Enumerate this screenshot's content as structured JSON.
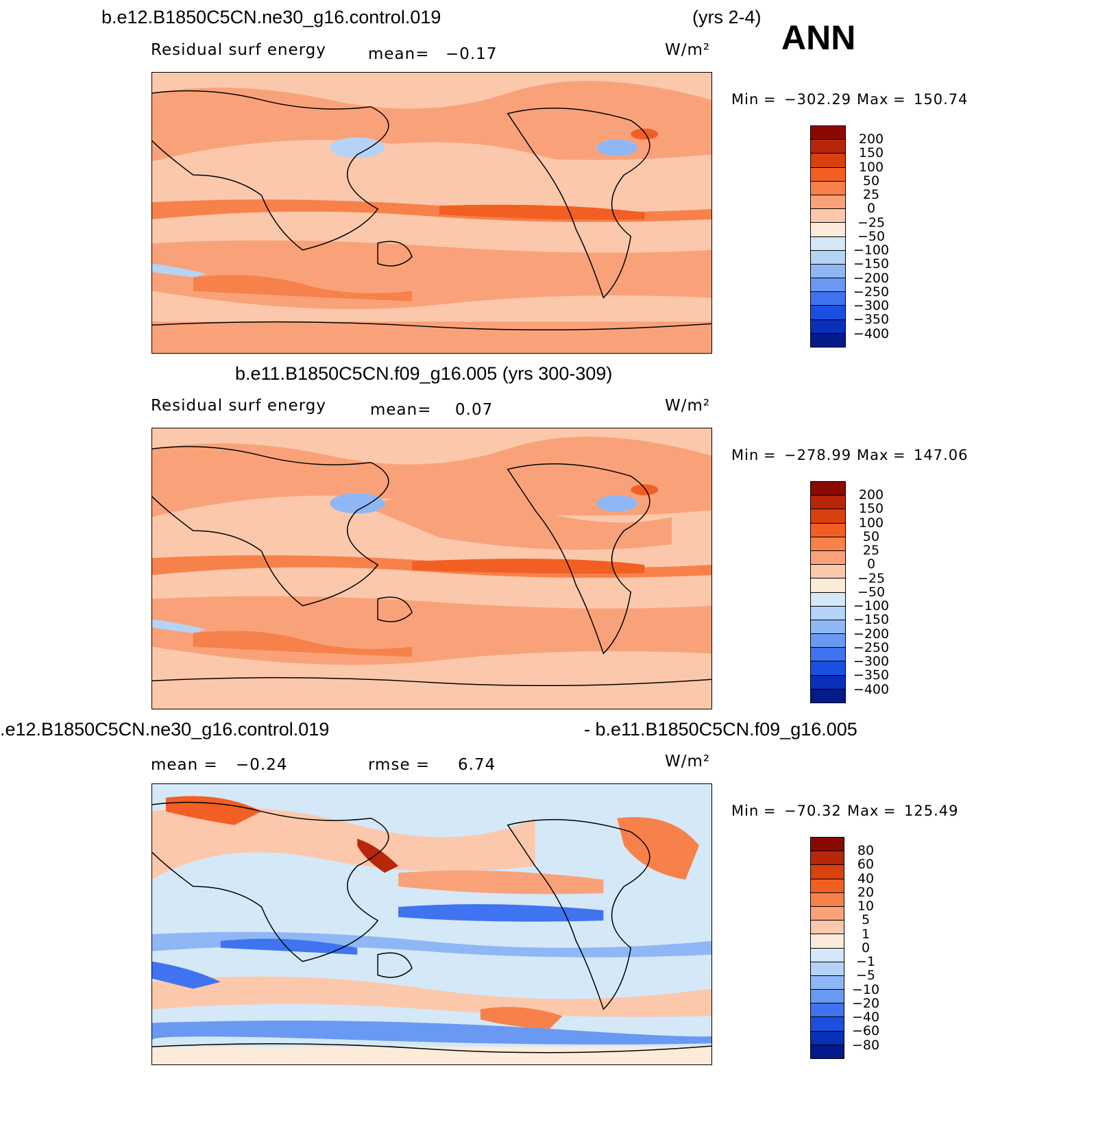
{
  "title_annual": "ANN",
  "panels": [
    {
      "header_left": "b.e12.B1850C5CN.ne30_g16.control.019",
      "header_right": "(yrs 2-4)",
      "variable": "Residual surf energy",
      "stat1_label": "mean=",
      "stat1_value": "−0.17",
      "units": "W/m²",
      "min_label": "Min",
      "min_value": "−302.29",
      "max_label": "Max",
      "max_value": "150.74",
      "levels": [
        "200",
        "150",
        "100",
        "50",
        "25",
        "0",
        "−25",
        "−50",
        "−100",
        "−150",
        "−200",
        "−250",
        "−300",
        "−350",
        "−400"
      ],
      "colors": [
        "#8a0a02",
        "#b8260a",
        "#d9410f",
        "#f25f23",
        "#f7814a",
        "#f9a27a",
        "#fbc8ac",
        "#fdebd9",
        "#d4e8f8",
        "#b5d3f6",
        "#8fb7f5",
        "#6a99f3",
        "#3f73ef",
        "#1b4fe0",
        "#0a2fb8",
        "#031a8a"
      ],
      "mean_value": -0.17,
      "range": [
        -302.29,
        150.74
      ]
    },
    {
      "header_left": "b.e11.B1850C5CN.f09_g16.005 (yrs 300-309)",
      "variable": "Residual surf energy",
      "stat1_label": "mean=",
      "stat1_value": "0.07",
      "units": "W/m²",
      "min_label": "Min",
      "min_value": "−278.99",
      "max_label": "Max",
      "max_value": "147.06",
      "levels": [
        "200",
        "150",
        "100",
        "50",
        "25",
        "0",
        "−25",
        "−50",
        "−100",
        "−150",
        "−200",
        "−250",
        "−300",
        "−350",
        "−400"
      ],
      "colors": [
        "#8a0a02",
        "#b8260a",
        "#d9410f",
        "#f25f23",
        "#f7814a",
        "#f9a27a",
        "#fbc8ac",
        "#fdebd9",
        "#d4e8f8",
        "#b5d3f6",
        "#8fb7f5",
        "#6a99f3",
        "#3f73ef",
        "#1b4fe0",
        "#0a2fb8",
        "#031a8a"
      ],
      "mean_value": 0.07,
      "range": [
        -278.99,
        147.06
      ]
    },
    {
      "header_left": ".e12.B1850C5CN.ne30_g16.control.019",
      "header_right": "- b.e11.B1850C5CN.f09_g16.005",
      "stat1_label": "mean =",
      "stat1_value": "−0.24",
      "stat2_label": "rmse =",
      "stat2_value": "6.74",
      "units": "W/m²",
      "min_label": "Min",
      "min_value": "−70.32",
      "max_label": "Max",
      "max_value": "125.49",
      "levels": [
        "80",
        "60",
        "40",
        "20",
        "10",
        "5",
        "1",
        "0",
        "−1",
        "−5",
        "−10",
        "−20",
        "−40",
        "−60",
        "−80"
      ],
      "colors": [
        "#8a0a02",
        "#b8260a",
        "#d9410f",
        "#f25f23",
        "#f7814a",
        "#f9a27a",
        "#fbc8ac",
        "#fdebd9",
        "#d4e8f8",
        "#b5d3f6",
        "#8fb7f5",
        "#6a99f3",
        "#3f73ef",
        "#1b4fe0",
        "#0a2fb8",
        "#031a8a"
      ],
      "mean_value": -0.24,
      "rmse_value": 6.74,
      "range": [
        -70.32,
        125.49
      ]
    }
  ]
}
